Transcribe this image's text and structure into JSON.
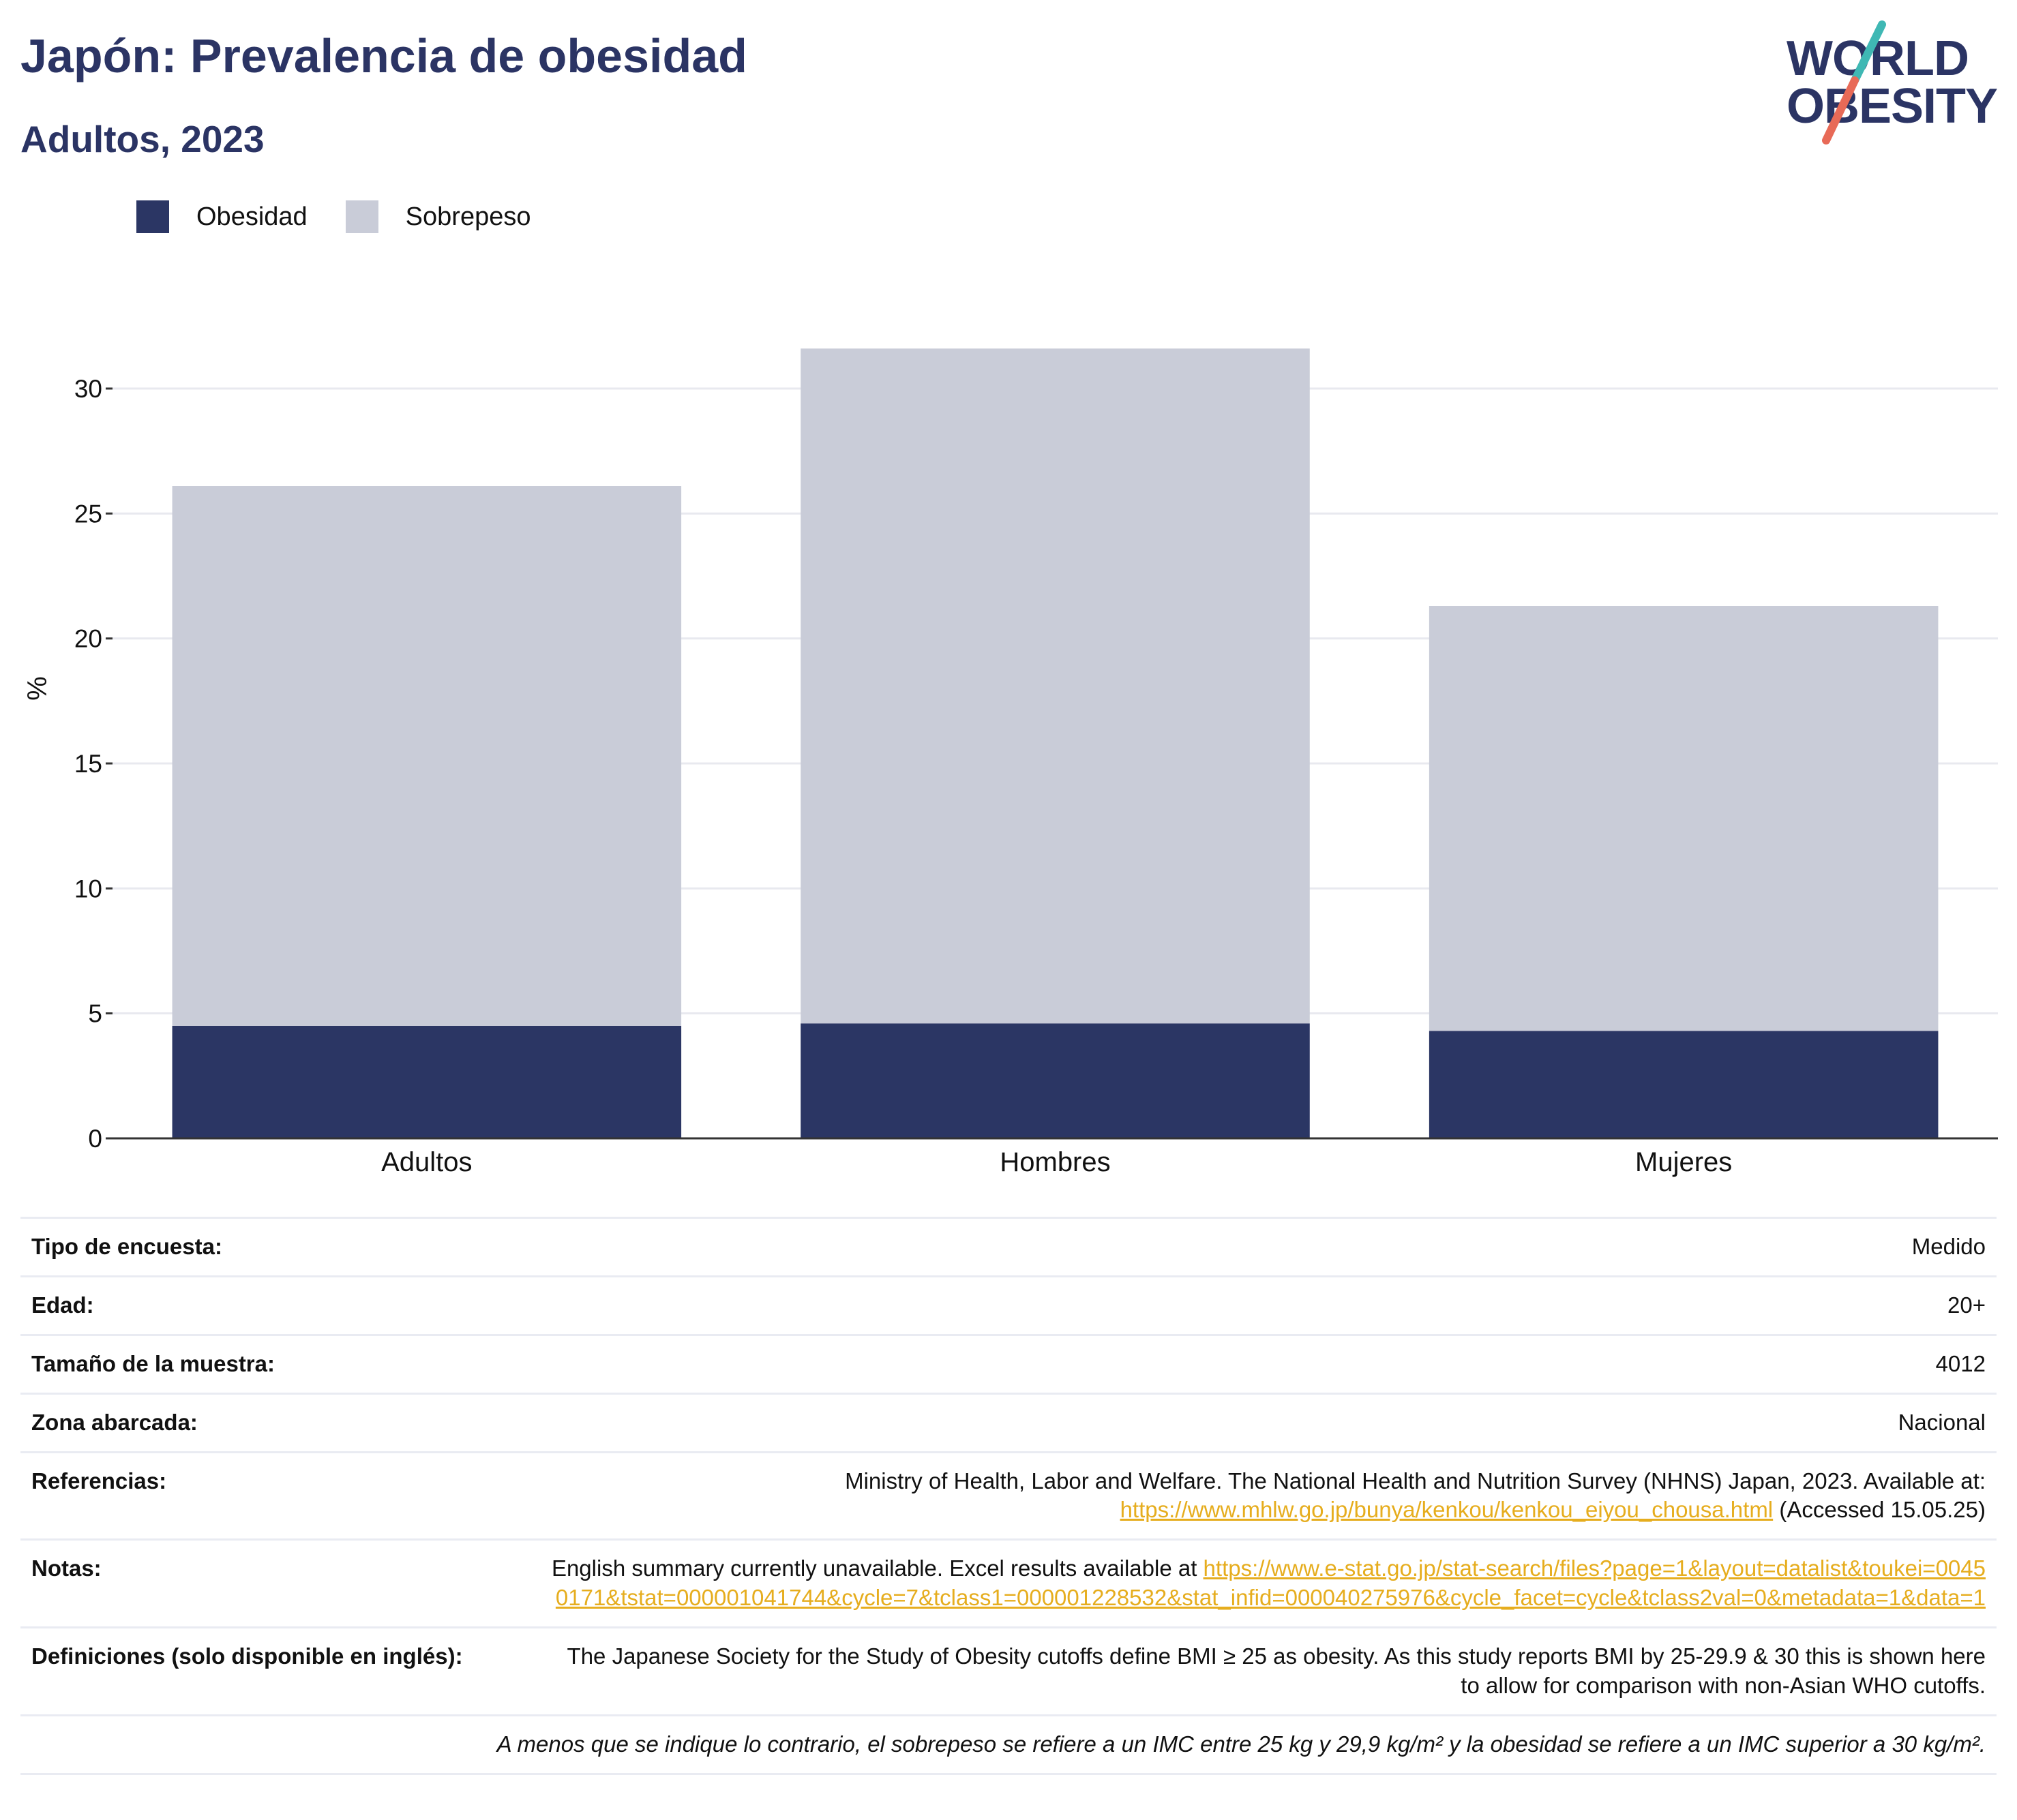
{
  "header": {
    "title": "Japón: Prevalencia de obesidad",
    "subtitle": "Adultos, 2023",
    "logo_line1": "WORLD",
    "logo_line2": "OBESITY"
  },
  "colors": {
    "obesity": "#2b3664",
    "overweight": "#c9ccd8",
    "title": "#2b3464",
    "link": "#e6ad1e",
    "logo_teal": "#3fb8b4",
    "logo_coral": "#e86a57"
  },
  "legend": {
    "obesity_label": "Obesidad",
    "overweight_label": "Sobrepeso"
  },
  "chart_data": {
    "type": "bar",
    "stacked": true,
    "categories": [
      "Adultos",
      "Hombres",
      "Mujeres"
    ],
    "series": [
      {
        "name": "Obesidad",
        "values": [
          4.5,
          4.6,
          4.3
        ]
      },
      {
        "name": "Sobrepeso",
        "values": [
          21.6,
          27.0,
          17.0
        ]
      }
    ],
    "ylabel": "%",
    "ylim": [
      0,
      33
    ],
    "yticks": [
      0,
      5,
      10,
      15,
      20,
      25,
      30
    ],
    "grid": true,
    "legend_position": "top-left"
  },
  "info": {
    "rows": [
      {
        "label": "Tipo de encuesta:",
        "value": "Medido"
      },
      {
        "label": "Edad:",
        "value": "20+"
      },
      {
        "label": "Tamaño de la muestra:",
        "value": "4012"
      },
      {
        "label": "Zona abarcada:",
        "value": "Nacional"
      }
    ],
    "references": {
      "label": "Referencias:",
      "text": "Ministry of Health, Labor and Welfare. The National Health and Nutrition Survey (NHNS) Japan, 2023. Available at:",
      "link": "https://www.mhlw.go.jp/bunya/kenkou/kenkou_eiyou_chousa.html",
      "suffix": "(Accessed 15.05.25)"
    },
    "notes": {
      "label": "Notas:",
      "text": "English summary currently unavailable. Excel results available at",
      "link": "https://www.e-stat.go.jp/stat-search/files?page=1&layout=datalist&toukei=00450171&tstat=000001041744&cycle=7&tclass1=000001228532&stat_infid=000040275976&cycle_facet=cycle&tclass2val=0&metadata=1&data=1"
    },
    "definitions": {
      "label": "Definiciones (solo disponible en inglés):",
      "text": "The Japanese Society for the Study of Obesity cutoffs define BMI ≥ 25 as obesity. As this study reports BMI by 25-29.9 & 30 this is shown here to allow for comparison with non-Asian WHO cutoffs."
    },
    "footnote": "A menos que se indique lo contrario, el sobrepeso se refiere a un IMC entre 25 kg y 29,9 kg/m² y la obesidad se refiere a un IMC superior a 30 kg/m²."
  }
}
